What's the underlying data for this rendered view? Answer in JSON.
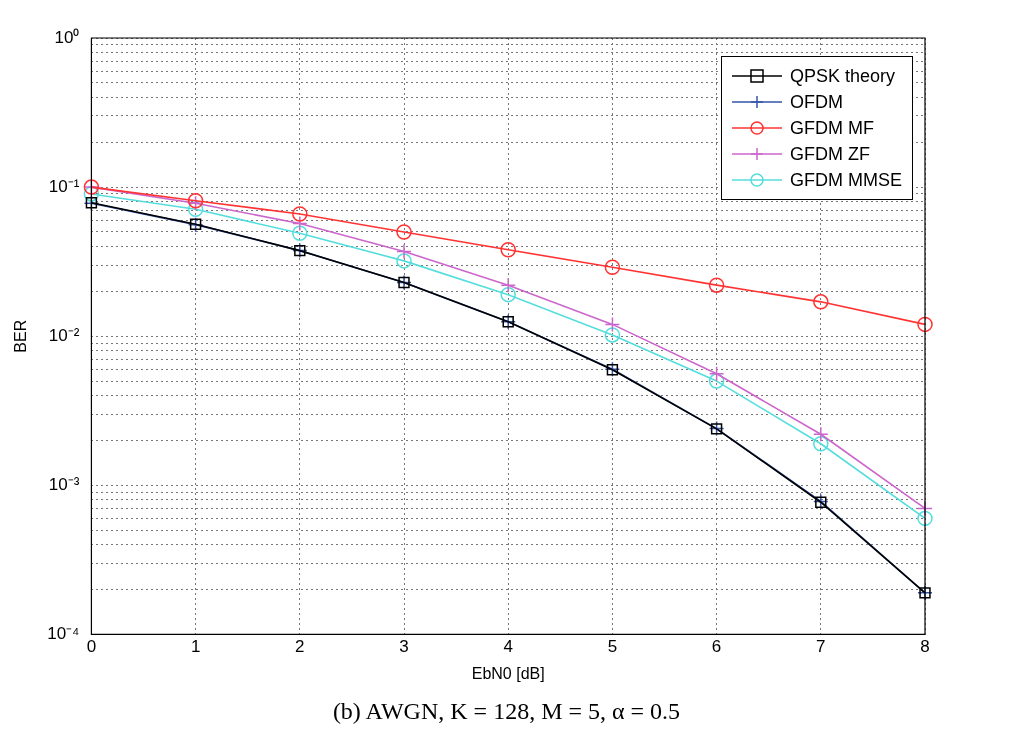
{
  "chart_data": {
    "type": "line",
    "xlabel": "EbN0 [dB]",
    "ylabel": "BER",
    "log": "y",
    "grid": true,
    "legend": "top right",
    "x": [
      0,
      1,
      2,
      3,
      4,
      5,
      6,
      7,
      8
    ],
    "xlim": [
      0,
      8
    ],
    "xticks": [
      0,
      1,
      2,
      3,
      4,
      5,
      6,
      7,
      8
    ],
    "ylim": [
      0.0001,
      1
    ],
    "yticks": [
      {
        "value": 0.0001,
        "label": "10⁻⁴"
      },
      {
        "value": 0.0002,
        "label": null
      },
      {
        "value": 0.0003,
        "label": null
      },
      {
        "value": 0.0004,
        "label": null
      },
      {
        "value": 0.0005,
        "label": null
      },
      {
        "value": 0.0006,
        "label": null
      },
      {
        "value": 0.0007,
        "label": null
      },
      {
        "value": 0.0008,
        "label": null
      },
      {
        "value": 0.0009,
        "label": null
      },
      {
        "value": 0.001,
        "label": "10⁻³"
      },
      {
        "value": 0.002,
        "label": null
      },
      {
        "value": 0.003,
        "label": null
      },
      {
        "value": 0.004,
        "label": null
      },
      {
        "value": 0.005,
        "label": null
      },
      {
        "value": 0.006,
        "label": null
      },
      {
        "value": 0.007,
        "label": null
      },
      {
        "value": 0.008,
        "label": null
      },
      {
        "value": 0.009,
        "label": null
      },
      {
        "value": 0.01,
        "label": "10⁻²"
      },
      {
        "value": 0.02,
        "label": null
      },
      {
        "value": 0.03,
        "label": null
      },
      {
        "value": 0.04,
        "label": null
      },
      {
        "value": 0.05,
        "label": null
      },
      {
        "value": 0.06,
        "label": null
      },
      {
        "value": 0.07,
        "label": null
      },
      {
        "value": 0.08,
        "label": null
      },
      {
        "value": 0.09,
        "label": null
      },
      {
        "value": 0.1,
        "label": "10⁻¹"
      },
      {
        "value": 0.2,
        "label": null
      },
      {
        "value": 0.3,
        "label": null
      },
      {
        "value": 0.4,
        "label": null
      },
      {
        "value": 0.5,
        "label": null
      },
      {
        "value": 0.6,
        "label": null
      },
      {
        "value": 0.7,
        "label": null
      },
      {
        "value": 0.8,
        "label": null
      },
      {
        "value": 0.9,
        "label": null
      },
      {
        "value": 1,
        "label": "10⁰"
      }
    ],
    "series": [
      {
        "name": "QPSK theory",
        "color": "#000000",
        "marker": "square",
        "values": [
          0.0786,
          0.0563,
          0.0375,
          0.0229,
          0.0125,
          0.00595,
          0.00239,
          0.00077,
          0.00019
        ]
      },
      {
        "name": "OFDM",
        "color": "#3355aa",
        "marker": "cross",
        "values": [
          0.078,
          0.056,
          0.0375,
          0.0229,
          0.0125,
          0.006,
          0.0024,
          0.00078,
          0.00019
        ]
      },
      {
        "name": "GFDM MF",
        "color": "#ff3333",
        "marker": "circle",
        "values": [
          0.1,
          0.081,
          0.066,
          0.05,
          0.038,
          0.029,
          0.022,
          0.017,
          0.012
        ]
      },
      {
        "name": "GFDM ZF",
        "color": "#cc66cc",
        "marker": "cross",
        "values": [
          0.1,
          0.078,
          0.057,
          0.037,
          0.022,
          0.012,
          0.0056,
          0.0022,
          0.0007
        ]
      },
      {
        "name": "GFDM MMSE",
        "color": "#55dddd",
        "marker": "circle",
        "values": [
          0.09,
          0.071,
          0.049,
          0.032,
          0.019,
          0.0102,
          0.005,
          0.0019,
          0.0006
        ]
      }
    ],
    "annotations": [
      "(b) AWGN, K = 128, M = 5, α = 0.5"
    ]
  }
}
